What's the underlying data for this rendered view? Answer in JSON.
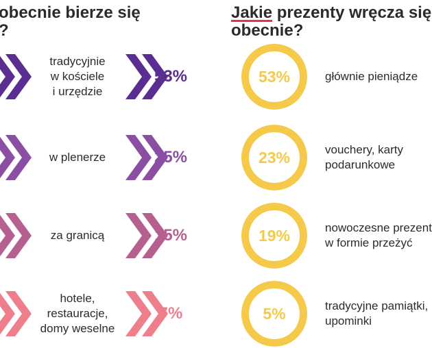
{
  "headings": {
    "left": [
      "obecnie bierze się",
      "?"
    ],
    "right_underlined": "Jakie",
    "right_rest": " prezenty wręcza się",
    "right_line2": "obecnie?"
  },
  "chart_data": [
    {
      "type": "bar",
      "categories": [
        [
          "tradycyjnie",
          "w kościele",
          "i urzędzie"
        ],
        [
          "w plenerze"
        ],
        [
          "za granicą"
        ],
        [
          "hotele,",
          "restauracje,",
          "domy weselne"
        ]
      ],
      "values": [
        53,
        25,
        15,
        7
      ],
      "value_labels": [
        "53%",
        "25%",
        "15%",
        "7%"
      ],
      "colors": [
        "#5a2d91",
        "#8a4fa3",
        "#b5608f",
        "#ee7e8c"
      ]
    },
    {
      "type": "pie",
      "categories": [
        [
          "głównie pieniądze"
        ],
        [
          "vouchery, karty",
          "podarunkowe"
        ],
        [
          "nowoczesne prezenty",
          "w formie przeżyć"
        ],
        [
          "tradycyjne pamiątki,",
          "upominki"
        ]
      ],
      "values": [
        53,
        23,
        19,
        5
      ],
      "value_labels": [
        "53%",
        "23%",
        "19%",
        "5%"
      ],
      "color": "#f5c94a"
    }
  ]
}
